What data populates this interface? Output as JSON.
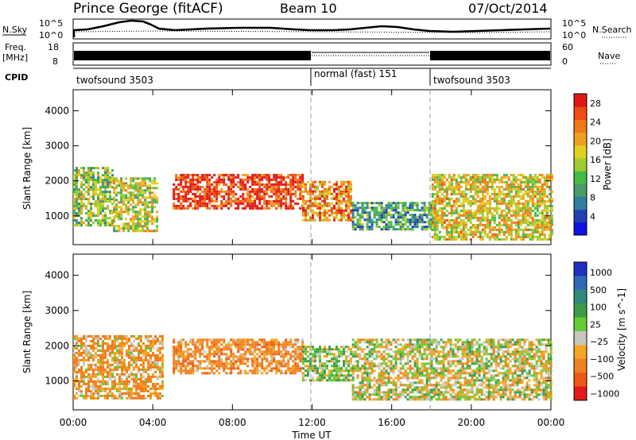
{
  "header": {
    "station": "Prince George (fitACF)",
    "beam": "Beam 10",
    "date": "07/Oct/2014"
  },
  "top_panels": {
    "noise": {
      "left_label": "N.Sky",
      "right_label": "N.Search",
      "left_ticks": [
        "10^5",
        "10^0"
      ],
      "right_ticks": [
        "10^5",
        "10^0"
      ]
    },
    "freq": {
      "left_label_line1": "Freq.",
      "left_label_line2": "[MHz]",
      "left_ticks": [
        "18",
        "8"
      ],
      "right_label": "Nave",
      "right_ticks": [
        "60",
        "0"
      ]
    },
    "cpid": {
      "label": "CPID",
      "segments": [
        {
          "name": "twofsound 3503",
          "start_hour": 0,
          "end_hour": 12
        },
        {
          "name": "normal (fast) 151",
          "start_hour": 12,
          "end_hour": 18
        },
        {
          "name": "twofsound 3503",
          "start_hour": 18,
          "end_hour": 24
        }
      ]
    }
  },
  "chart_data": [
    {
      "type": "heatmap",
      "title": "",
      "xlabel": "",
      "ylabel": "Slant Range [km]",
      "x_range_hours": [
        0,
        24
      ],
      "ylim": [
        180,
        4600
      ],
      "yticks": [
        1000,
        2000,
        3000,
        4000
      ],
      "colorbar": {
        "label": "Power [dB]",
        "ticks": [
          "4",
          "8",
          "12",
          "16",
          "20",
          "24",
          "28"
        ],
        "colors": [
          "#1010e0",
          "#2040b0",
          "#2f7f9e",
          "#4a9a6a",
          "#44bb44",
          "#9dcc2e",
          "#e0d020",
          "#f0a020",
          "#f07818",
          "#ee4c10",
          "#e01818"
        ]
      },
      "regions": [
        {
          "start_hour": 0.0,
          "end_hour": 2.0,
          "range_min": 700,
          "range_max": 2400,
          "power_db": 14
        },
        {
          "start_hour": 2.0,
          "end_hour": 4.2,
          "range_min": 600,
          "range_max": 2100,
          "power_db": 16
        },
        {
          "start_hour": 5.0,
          "end_hour": 11.5,
          "range_min": 1200,
          "range_max": 2200,
          "power_db": 27
        },
        {
          "start_hour": 11.5,
          "end_hour": 14.0,
          "range_min": 900,
          "range_max": 2000,
          "power_db": 22
        },
        {
          "start_hour": 14.0,
          "end_hour": 18.0,
          "range_min": 600,
          "range_max": 1400,
          "power_db": 10
        },
        {
          "start_hour": 18.0,
          "end_hour": 24.0,
          "range_min": 300,
          "range_max": 2200,
          "power_db": 18
        }
      ]
    },
    {
      "type": "heatmap",
      "title": "",
      "xlabel": "Time UT",
      "ylabel": "Slant Range [km]",
      "x_range_hours": [
        0,
        24
      ],
      "xticks": [
        "00:00",
        "04:00",
        "08:00",
        "12:00",
        "16:00",
        "20:00",
        "00:00"
      ],
      "ylim": [
        180,
        4600
      ],
      "yticks": [
        1000,
        2000,
        3000,
        4000
      ],
      "colorbar": {
        "label": "Velocity [m s^-1]",
        "ticks": [
          "1000",
          "500",
          "100",
          "25",
          "−25",
          "−100",
          "−500",
          "−1000"
        ],
        "colors": [
          "#2030c0",
          "#3068b8",
          "#2f8a7a",
          "#3a9e48",
          "#66cc33",
          "#c8c8c0",
          "#f5a623",
          "#f08020",
          "#ec5a14",
          "#e21a1a"
        ]
      },
      "regions": [
        {
          "start_hour": 0.0,
          "end_hour": 4.5,
          "range_min": 500,
          "range_max": 2300,
          "velocity": -100
        },
        {
          "start_hour": 5.0,
          "end_hour": 11.5,
          "range_min": 1200,
          "range_max": 2200,
          "velocity": -150
        },
        {
          "start_hour": 11.5,
          "end_hour": 14.0,
          "range_min": 1000,
          "range_max": 2000,
          "velocity": 50
        },
        {
          "start_hour": 14.0,
          "end_hour": 24.0,
          "range_min": 500,
          "range_max": 2200,
          "velocity": 0
        }
      ]
    }
  ]
}
